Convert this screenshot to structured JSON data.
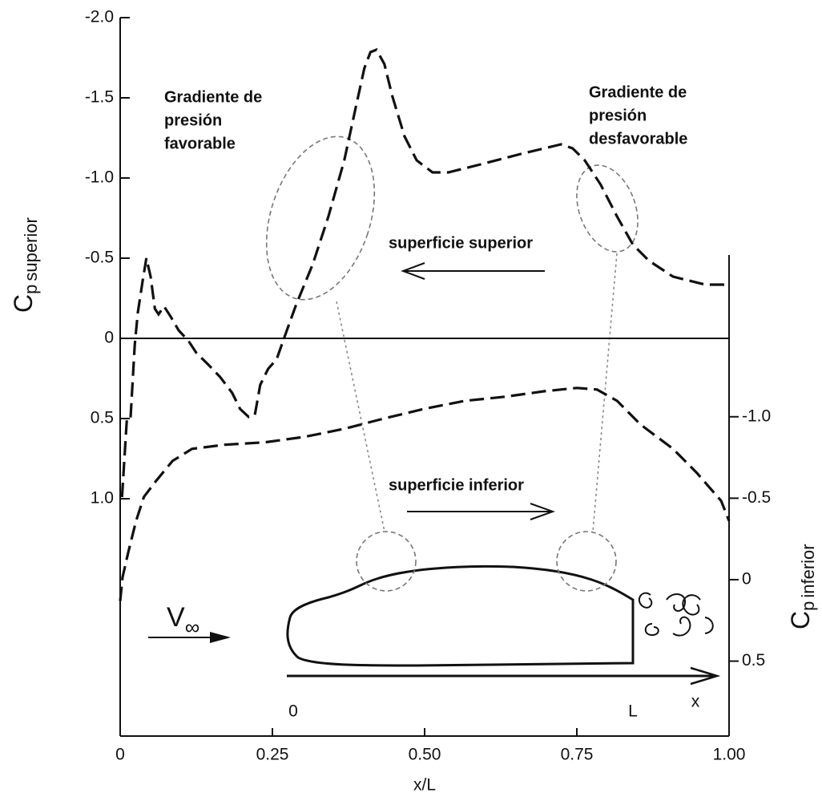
{
  "chart_data": {
    "type": "line",
    "xlabel": "x/L",
    "ylabel": [
      "C",
      "p",
      "superior"
    ],
    "y2label": [
      "C",
      "p",
      "inferior"
    ],
    "xlim": [
      0,
      1
    ],
    "xticks": [
      0,
      0.25,
      {
        "value": 0.5,
        "label": "0.50"
      },
      0.75,
      {
        "value": 1,
        "label": "1.00"
      }
    ],
    "ylim": [
      -2.0,
      2.48
    ],
    "yticks": [
      {
        "value": -2,
        "label": "-2.0"
      },
      -1.5,
      {
        "value": -1,
        "label": "-1.0"
      },
      -0.5,
      0,
      0.5,
      {
        "value": 1,
        "label": "1.0"
      }
    ],
    "y2lim": [
      -3.45,
      0.96
    ],
    "y2ticks": [
      {
        "value": -1,
        "label": "-1.0"
      },
      -0.5,
      0,
      0.5
    ],
    "series": [
      {
        "name": "superficie superior",
        "color": "#111111",
        "axis": "y",
        "x": [
          0.003,
          0.011,
          0.017,
          0.024,
          0.029,
          0.037,
          0.043,
          0.05,
          0.057,
          0.063,
          0.072,
          0.083,
          0.096,
          0.112,
          0.125,
          0.145,
          0.164,
          0.184,
          0.197,
          0.211,
          0.221,
          0.23,
          0.243,
          0.257,
          0.27,
          0.289,
          0.316,
          0.342,
          0.368,
          0.388,
          0.401,
          0.411,
          0.421,
          0.434,
          0.447,
          0.467,
          0.487,
          0.513,
          0.539,
          0.592,
          0.658,
          0.724,
          0.743,
          0.763,
          0.789,
          0.816,
          0.842,
          0.868,
          0.908,
          0.961,
          1.0
        ],
        "values": [
          0.99,
          0.5,
          0.5,
          0.04,
          -0.16,
          -0.36,
          -0.5,
          -0.385,
          -0.185,
          -0.15,
          -0.2,
          -0.135,
          -0.05,
          0.015,
          0.09,
          0.165,
          0.24,
          0.34,
          0.44,
          0.49,
          0.48,
          0.29,
          0.19,
          0.13,
          -0.01,
          -0.21,
          -0.46,
          -0.76,
          -1.11,
          -1.46,
          -1.685,
          -1.785,
          -1.8,
          -1.71,
          -1.51,
          -1.26,
          -1.11,
          -1.035,
          -1.035,
          -1.085,
          -1.15,
          -1.21,
          -1.185,
          -1.11,
          -0.96,
          -0.76,
          -0.585,
          -0.485,
          -0.385,
          -0.335,
          -0.335
        ]
      },
      {
        "name": "superficie inferior",
        "color": "#111111",
        "axis": "y2",
        "x": [
          0,
          0.004,
          0.013,
          0.026,
          0.039,
          0.059,
          0.086,
          0.118,
          0.171,
          0.237,
          0.303,
          0.368,
          0.434,
          0.5,
          0.566,
          0.632,
          0.697,
          0.75,
          0.783,
          0.816,
          0.855,
          0.908,
          0.947,
          0.987,
          1.0
        ],
        "values": [
          0.131,
          -0.016,
          -0.164,
          -0.36,
          -0.508,
          -0.606,
          -0.729,
          -0.803,
          -0.828,
          -0.843,
          -0.877,
          -0.926,
          -0.99,
          -1.049,
          -1.098,
          -1.123,
          -1.157,
          -1.177,
          -1.167,
          -1.098,
          -0.951,
          -0.803,
          -0.656,
          -0.484,
          -0.361
        ]
      }
    ],
    "annotations": [
      {
        "lines": [
          "Gradiente de",
          "presión",
          "favorable"
        ]
      },
      {
        "lines": [
          "Gradiente de",
          "presión",
          "desfavorable"
        ]
      }
    ],
    "diagram_labels": {
      "velocity": "V",
      "velocity_subscript": "∞",
      "origin": "0",
      "length": "L",
      "axis": "x"
    }
  }
}
